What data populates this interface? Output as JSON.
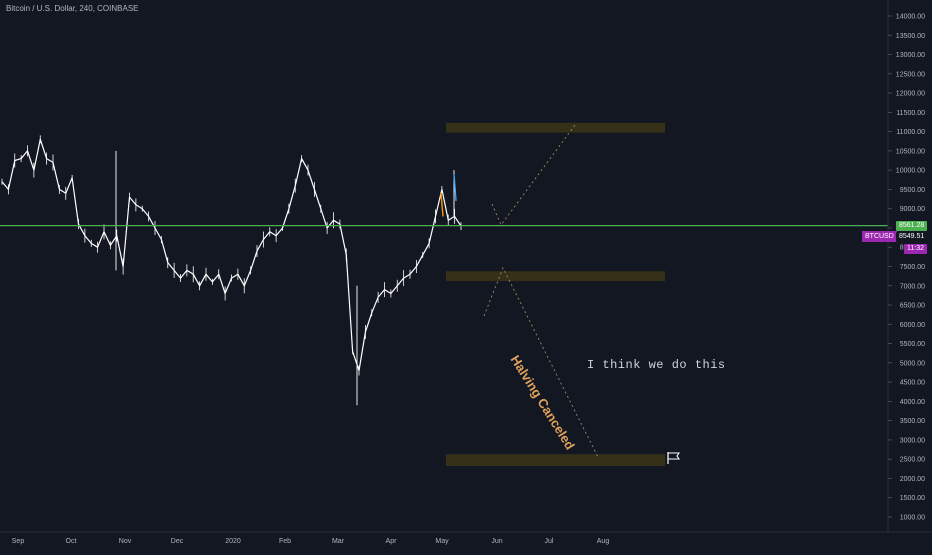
{
  "header": {
    "title": "Bitcoin / U.S. Dollar, 240, COINBASE"
  },
  "colors": {
    "background": "#131722",
    "candles": "#ffffff",
    "support_line": "#4caf50",
    "zone_fill": "#3a3418",
    "halving_text": "#e0a15a",
    "symbol_badge": "#9c27b0",
    "price_badge": "#4caf50",
    "blue_mark": "#42a5f5",
    "orange_mark": "#ff9800"
  },
  "annotations": {
    "note": "I think we do this",
    "halving": "Halving Canceled",
    "flag_icon": "flag-icon"
  },
  "badges": {
    "symbol": "BTCUSD",
    "line_price": "8561.28",
    "last_price": "8549.51",
    "countdown": "11:32"
  },
  "chart_data": {
    "type": "line",
    "title": "Bitcoin / U.S. Dollar, 240, COINBASE",
    "xlabel": "",
    "ylabel": "",
    "ylim": [
      500,
      14400
    ],
    "y_ticks": [
      1000,
      1500,
      2000,
      2500,
      3000,
      3500,
      4000,
      4500,
      5000,
      5500,
      6000,
      6500,
      7000,
      7500,
      8000,
      8500,
      9000,
      9500,
      10000,
      10500,
      11000,
      11500,
      12000,
      12500,
      13000,
      13500,
      14000
    ],
    "y_tick_labels": [
      "1000.00",
      "1500.00",
      "2000.00",
      "2500.00",
      "3000.00",
      "3500.00",
      "4000.00",
      "4500.00",
      "5000.00",
      "5500.00",
      "6000.00",
      "6500.00",
      "7000.00",
      "7500.00",
      "8000.00",
      "8500.00",
      "9000.00",
      "9500.00",
      "10000.00",
      "10500.00",
      "11000.00",
      "11500.00",
      "12000.00",
      "12500.00",
      "13000.00",
      "13500.00",
      "14000.00"
    ],
    "x_ticks": [
      "Sep",
      "Oct",
      "Nov",
      "Dec",
      "2020",
      "Feb",
      "Mar",
      "Apr",
      "May",
      "Jun",
      "Jul",
      "Aug"
    ],
    "horizontal_line": {
      "value": 8561.28
    },
    "zones": [
      {
        "low": 11050,
        "high": 11150
      },
      {
        "low": 7200,
        "high": 7300
      },
      {
        "low": 2400,
        "high": 2550
      }
    ],
    "series": [
      {
        "values": [
          9700,
          9500,
          10250,
          10300,
          10500,
          10000,
          10800,
          10300,
          10200,
          9500,
          9400,
          9800,
          8600,
          8300,
          8100,
          8000,
          8400,
          8050,
          8300,
          7500,
          9300,
          9100,
          9000,
          8800,
          8500,
          8200,
          7600,
          7400,
          7200,
          7400,
          7300,
          7000,
          7300,
          7100,
          7300,
          6800,
          7200,
          7300,
          7000,
          7400,
          7900,
          8200,
          8400,
          8300,
          8500,
          9000,
          9600,
          10300,
          10000,
          9500,
          9000,
          8500,
          8700,
          8600,
          7800,
          5300,
          4800,
          5800,
          6300,
          6700,
          6900,
          6800,
          7000,
          7200,
          7300,
          7500,
          7800,
          8100,
          8800,
          9500,
          8700,
          8800,
          8549
        ]
      }
    ]
  }
}
